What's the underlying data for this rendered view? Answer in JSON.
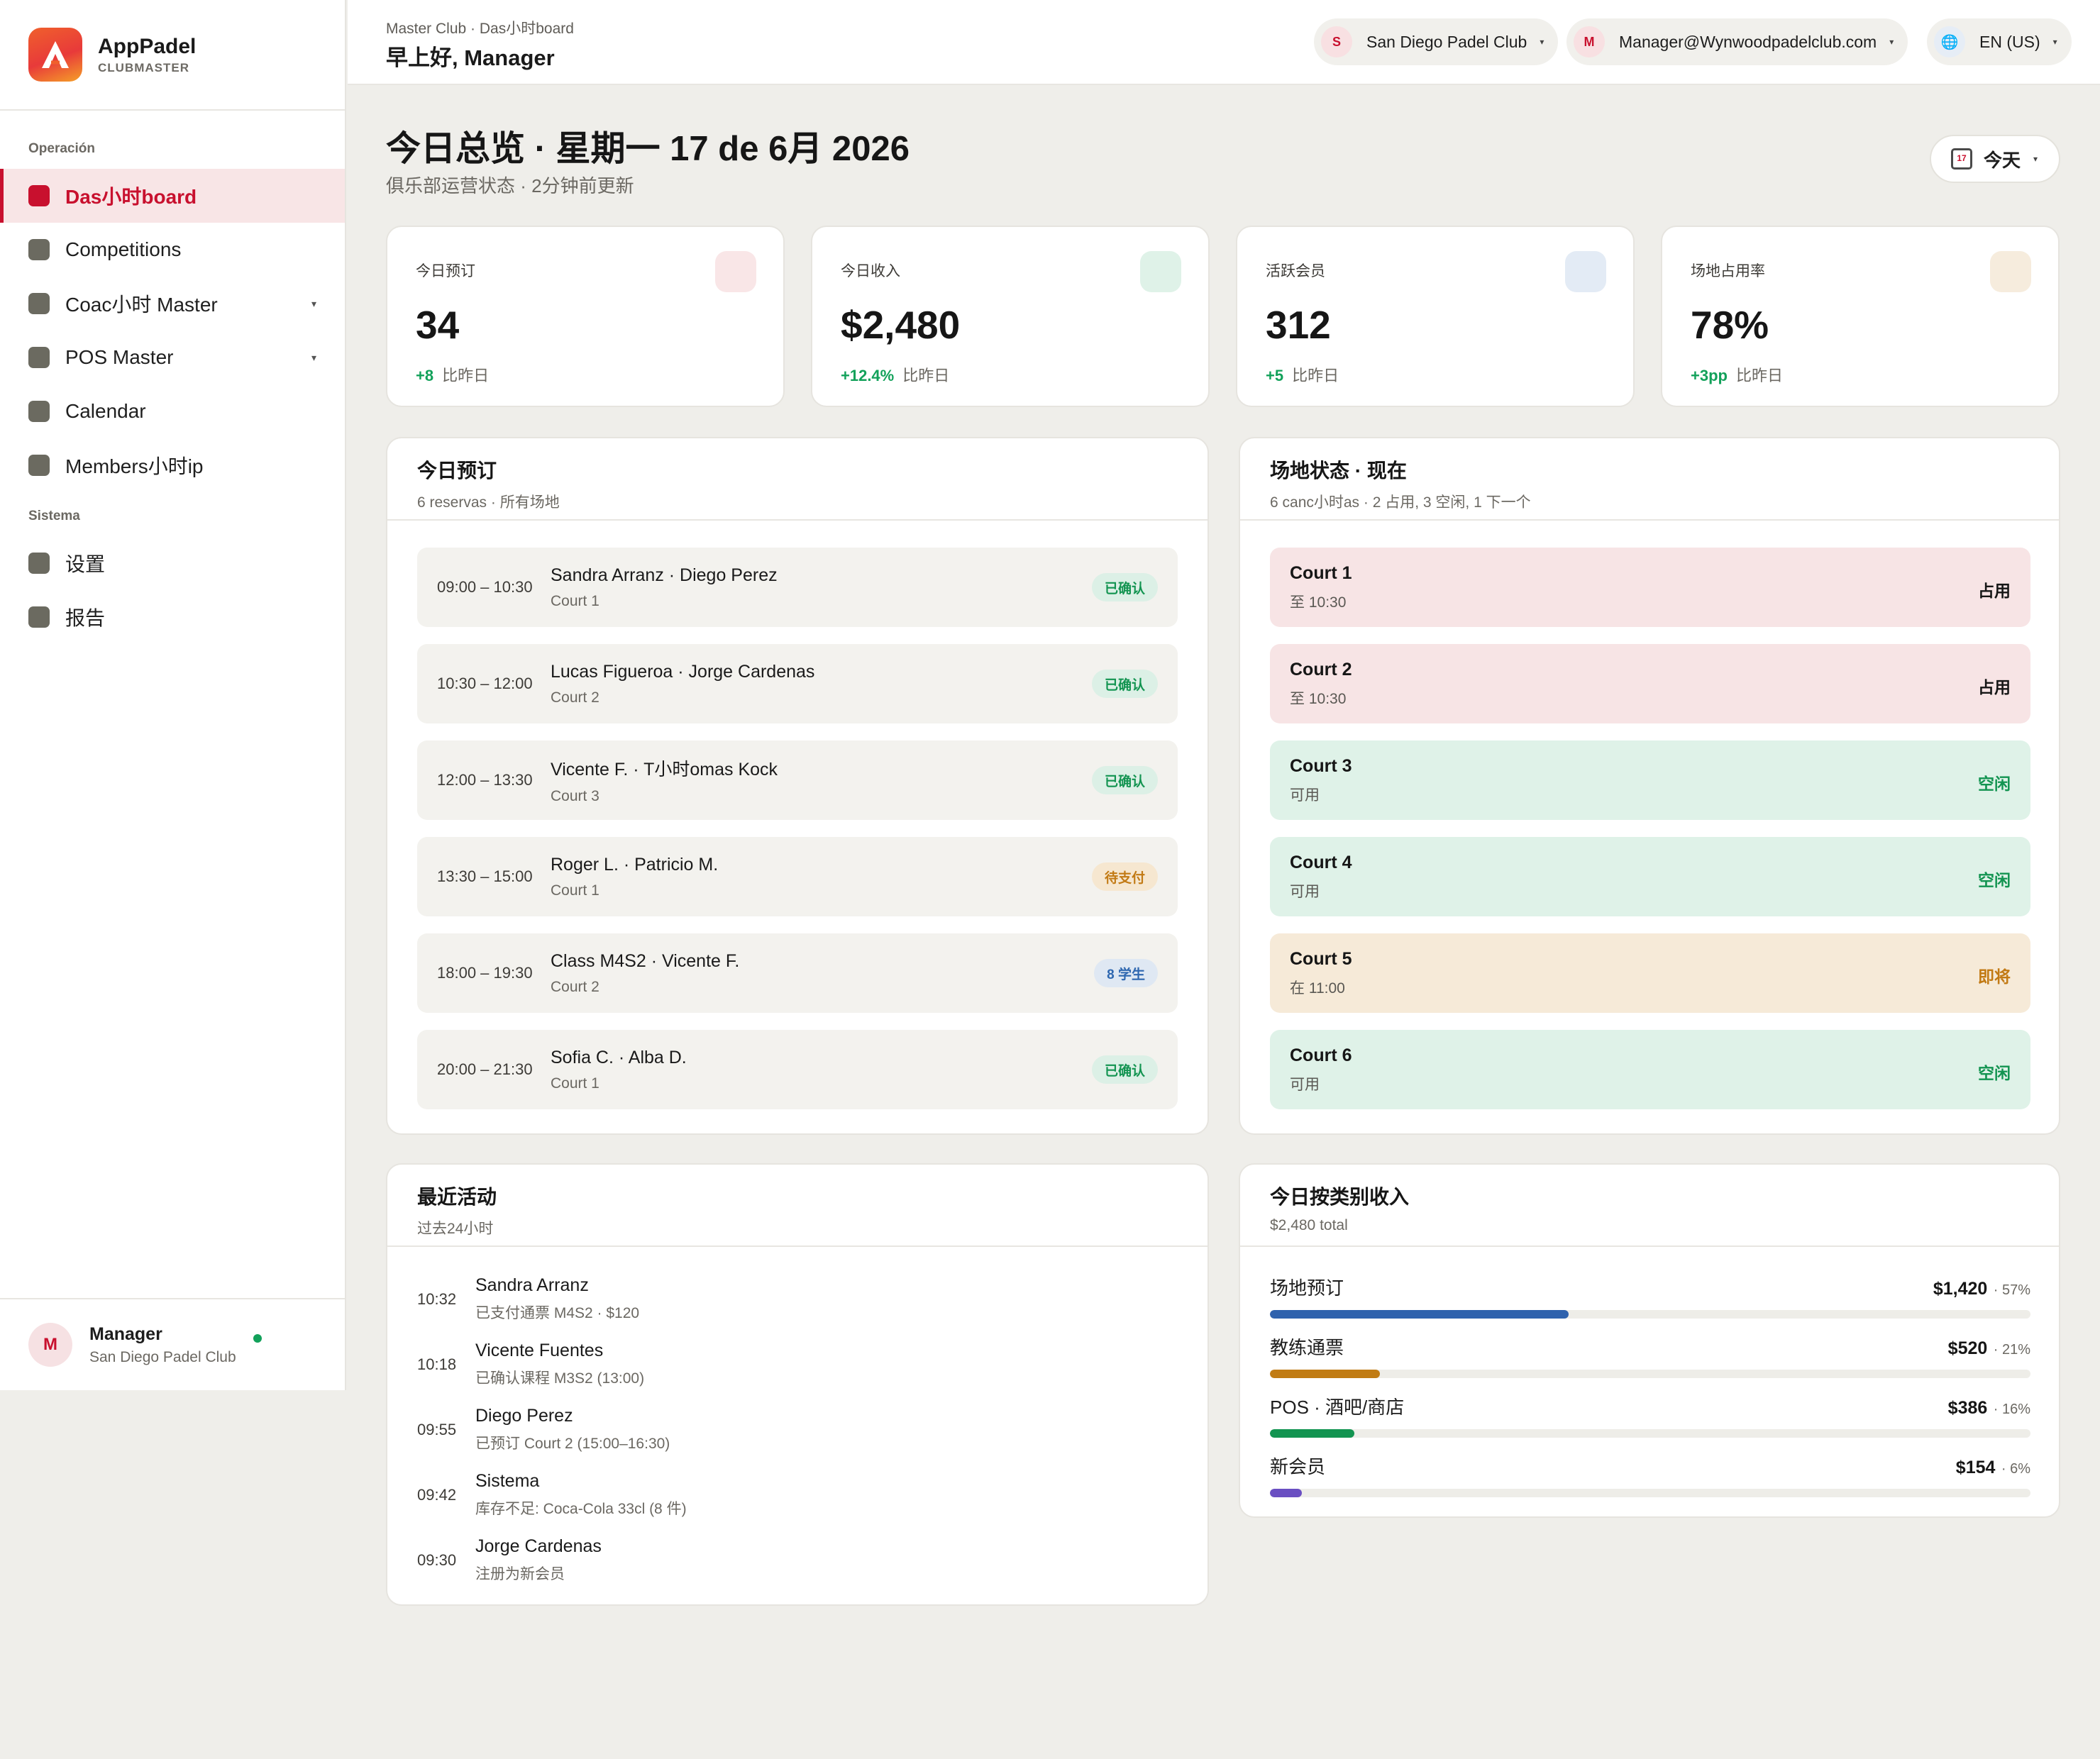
{
  "brand": {
    "name": "AppPadel",
    "sub": "CLUBMASTER"
  },
  "sidebar": {
    "section_ops": "Operación",
    "section_sys": "Sistema",
    "items": [
      {
        "label": "Das小时board",
        "active": true
      },
      {
        "label": "Competitions"
      },
      {
        "label": "Coac小时 Master",
        "caret": "▾"
      },
      {
        "label": "POS Master",
        "caret": "▾"
      },
      {
        "label": "Calendar"
      },
      {
        "label": "Members小时ip"
      }
    ],
    "sys_items": [
      {
        "label": "设置"
      },
      {
        "label": "报告"
      }
    ],
    "user": {
      "initial": "M",
      "name": "Manager",
      "club": "San Diego Padel Club"
    }
  },
  "topbar": {
    "crumb": "Master Club · Das小时board",
    "greeting": "早上好, Manager",
    "club_pill": {
      "initial": "S",
      "label": "San Diego Padel Club",
      "caret": "▾"
    },
    "user_pill": {
      "initial": "M",
      "label": "Manager@Wynwoodpadelclub.com",
      "caret": "▾"
    },
    "lang_pill": {
      "icon": "globe-icon",
      "glyph": "🌐",
      "label": "EN (US)",
      "caret": "▾"
    }
  },
  "header": {
    "title": "今日总览 · 星期一 17 de 6月 2026",
    "subtitle": "俱乐部运营状态 · 2分钟前更新",
    "today_btn": "今天",
    "today_caret": "▾",
    "cal_day": "17"
  },
  "kpis": [
    {
      "label": "今日预订",
      "value": "34",
      "delta": "+8",
      "delta_note": "比昨日",
      "chip_color": "#f9e6e7"
    },
    {
      "label": "今日收入",
      "value": "$2,480",
      "delta": "+12.4%",
      "delta_note": "比昨日",
      "chip_color": "#dff2e8"
    },
    {
      "label": "活跃会员",
      "value": "312",
      "delta": "+5",
      "delta_note": "比昨日",
      "chip_color": "#e3ebf5"
    },
    {
      "label": "场地占用率",
      "value": "78%",
      "delta": "+3pp",
      "delta_note": "比昨日",
      "chip_color": "#f6ecdd"
    }
  ],
  "bookings": {
    "title": "今日预订",
    "subtitle": "6 reservas · 所有场地",
    "rows": [
      {
        "time": "09:00 – 10:30",
        "names": "Sandra Arranz · Diego Perez",
        "court": "Court 1",
        "badge": "已确认",
        "badge_type": "green"
      },
      {
        "time": "10:30 – 12:00",
        "names": "Lucas Figueroa · Jorge Cardenas",
        "court": "Court 2",
        "badge": "已确认",
        "badge_type": "green"
      },
      {
        "time": "12:00 – 13:30",
        "names": "Vicente F. · T小时omas Kock",
        "court": "Court 3",
        "badge": "已确认",
        "badge_type": "green"
      },
      {
        "time": "13:30 – 15:00",
        "names": "Roger L. · Patricio M.",
        "court": "Court 1",
        "badge": "待支付",
        "badge_type": "amber"
      },
      {
        "time": "18:00 – 19:30",
        "names": "Class M4S2 · Vicente F.",
        "court": "Court 2",
        "badge": "8 学生",
        "badge_type": "blue"
      },
      {
        "time": "20:00 – 21:30",
        "names": "Sofia C. · Alba D.",
        "court": "Court 1",
        "badge": "已确认",
        "badge_type": "green"
      }
    ]
  },
  "courts": {
    "title": "场地状态 · 现在",
    "subtitle": "6 canc小时as · 2 占用, 3 空闲, 1 下一个",
    "rows": [
      {
        "name": "Court 1",
        "info": "至 10:30",
        "status": "占用",
        "state": "busy"
      },
      {
        "name": "Court 2",
        "info": "至 10:30",
        "status": "占用",
        "state": "busy"
      },
      {
        "name": "Court 3",
        "info": "可用",
        "status": "空闲",
        "state": "free"
      },
      {
        "name": "Court 4",
        "info": "可用",
        "status": "空闲",
        "state": "free"
      },
      {
        "name": "Court 5",
        "info": "在 11:00",
        "status": "即将",
        "state": "soon"
      },
      {
        "name": "Court 6",
        "info": "可用",
        "status": "空闲",
        "state": "free"
      }
    ]
  },
  "activity": {
    "title": "最近活动",
    "subtitle": "过去24小时",
    "rows": [
      {
        "time": "10:32",
        "title": "Sandra Arranz",
        "desc": "已支付通票 M4S2 · $120"
      },
      {
        "time": "10:18",
        "title": "Vicente Fuentes",
        "desc": "已确认课程 M3S2 (13:00)"
      },
      {
        "time": "09:55",
        "title": "Diego Perez",
        "desc": "已预订 Court 2 (15:00–16:30)"
      },
      {
        "time": "09:42",
        "title": "Sistema",
        "desc": "库存不足: Coca-Cola 33cl (8 件)"
      },
      {
        "time": "09:30",
        "title": "Jorge Cardenas",
        "desc": "注册为新会员"
      }
    ]
  },
  "revenue": {
    "title": "今日按类别收入",
    "subtitle": "$2,480 total",
    "rows": [
      {
        "label": "场地预订",
        "amount": "$1,420",
        "pct": "· 57%",
        "fraction": 0.393,
        "color": "#2f62ad"
      },
      {
        "label": "教练通票",
        "amount": "$520",
        "pct": "· 21%",
        "fraction": 0.145,
        "color": "#c17c14"
      },
      {
        "label": "POS · 酒吧/商店",
        "amount": "$386",
        "pct": "· 16%",
        "fraction": 0.111,
        "color": "#139451"
      },
      {
        "label": "新会员",
        "amount": "$154",
        "pct": "· 6%",
        "fraction": 0.042,
        "color": "#6a4fc2"
      }
    ]
  }
}
